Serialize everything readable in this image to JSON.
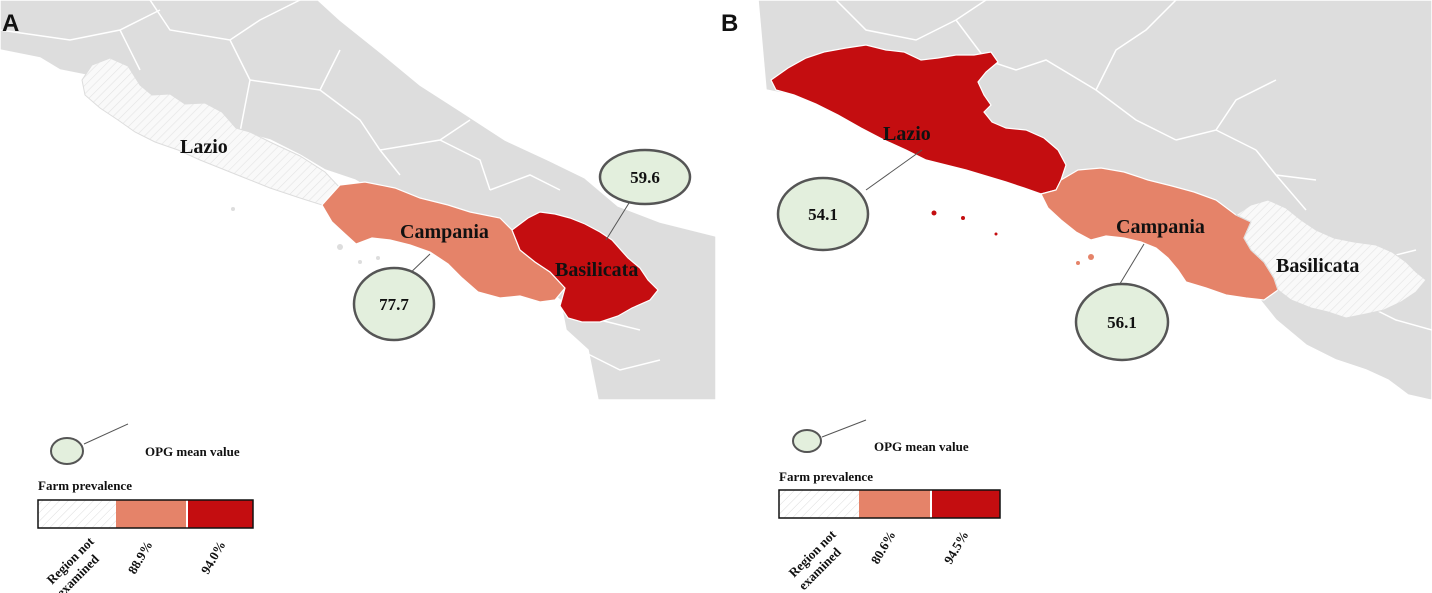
{
  "colors": {
    "land": "#dddddd",
    "border": "#ffffff",
    "sea": "#ffffff",
    "not_examined": "#f7f7f7",
    "medium": "#e58369",
    "high": "#c40d10",
    "bubble": "#e3efdd"
  },
  "panels": [
    {
      "letter": "A",
      "regions": [
        {
          "name": "Lazio",
          "prevalence_class": "not_examined"
        },
        {
          "name": "Campania",
          "prevalence_class": "medium"
        },
        {
          "name": "Basilicata",
          "prevalence_class": "high"
        }
      ],
      "bubbles": [
        {
          "region": "Basilicata",
          "value": "59.6"
        },
        {
          "region": "Campania",
          "value": "77.7"
        }
      ],
      "legend": {
        "opg_label": "OPG mean value",
        "farm_label": "Farm prevalence",
        "ticks": [
          "Region not examined",
          "88.9%",
          "94.0%"
        ],
        "tick_line1": "Region not",
        "tick_line2": "examined"
      }
    },
    {
      "letter": "B",
      "regions": [
        {
          "name": "Lazio",
          "prevalence_class": "high"
        },
        {
          "name": "Campania",
          "prevalence_class": "medium"
        },
        {
          "name": "Basilicata",
          "prevalence_class": "not_examined"
        }
      ],
      "bubbles": [
        {
          "region": "Lazio",
          "value": "54.1"
        },
        {
          "region": "Campania",
          "value": "56.1"
        }
      ],
      "legend": {
        "opg_label": "OPG mean value",
        "farm_label": "Farm prevalence",
        "ticks": [
          "Region not examined",
          "80.6%",
          "94.5%"
        ],
        "tick_line1": "Region not",
        "tick_line2": "examined"
      }
    }
  ]
}
